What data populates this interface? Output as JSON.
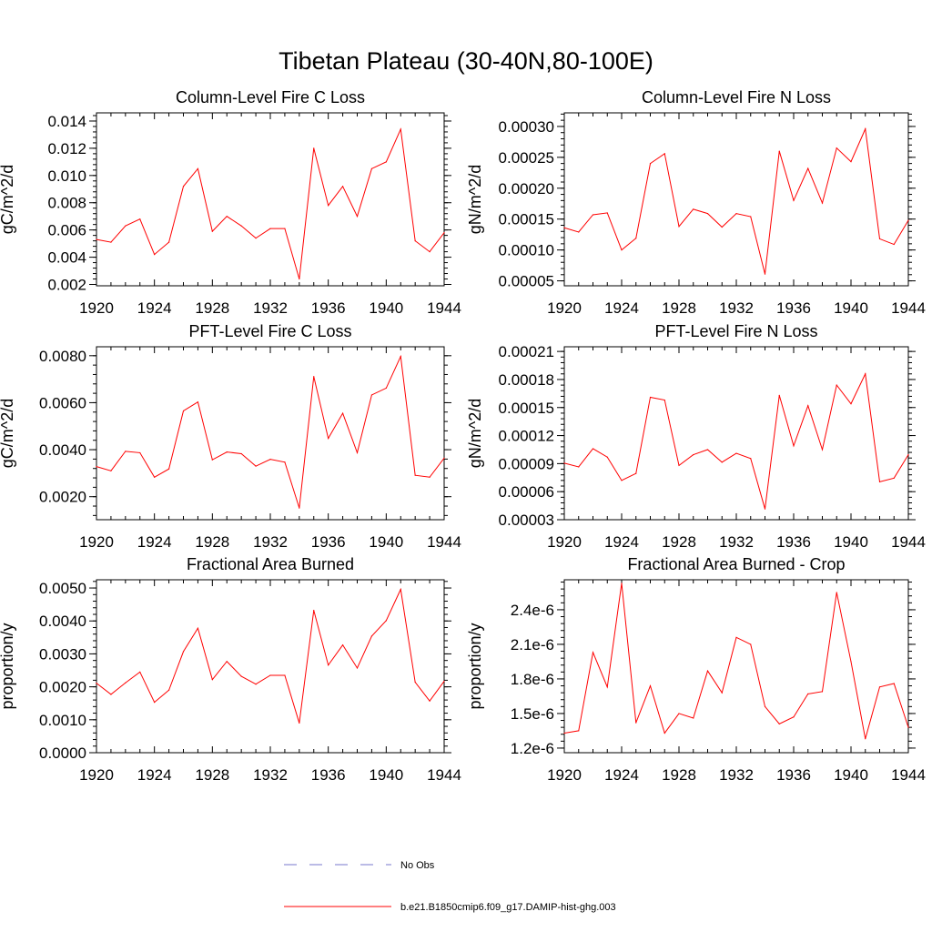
{
  "main_title": "Tibetan Plateau (30-40N,80-100E)",
  "legend": [
    {
      "label": "No Obs",
      "color": "#7777cc",
      "dash": "dashed"
    },
    {
      "label": "b.e21.B1850cmip6.f09_g17.DAMIP-hist-ghg.003",
      "color": "#ff0000",
      "dash": "solid"
    }
  ],
  "chart_data": [
    {
      "type": "line",
      "title": "Column-Level Fire C Loss",
      "ylabel": "gC/m^2/d",
      "xlim": [
        1920,
        1944
      ],
      "ylim": [
        0.0019,
        0.0146
      ],
      "xticks": [
        1920,
        1924,
        1928,
        1932,
        1936,
        1940,
        1944
      ],
      "xticklabels": [
        "1920",
        "1924",
        "1928",
        "1932",
        "1936",
        "1940",
        "1944"
      ],
      "yticks": [
        0.002,
        0.004,
        0.006,
        0.008,
        0.01,
        0.012,
        0.014
      ],
      "yticklabels": [
        "0.002",
        "0.004",
        "0.006",
        "0.008",
        "0.010",
        "0.012",
        "0.014"
      ],
      "x": [
        1920,
        1921,
        1922,
        1923,
        1924,
        1925,
        1926,
        1927,
        1928,
        1929,
        1930,
        1931,
        1932,
        1933,
        1934,
        1935,
        1936,
        1937,
        1938,
        1939,
        1940,
        1941,
        1942,
        1943,
        1944
      ],
      "series": [
        {
          "values": [
            0.0053,
            0.0051,
            0.0063,
            0.0068,
            0.0042,
            0.0051,
            0.0092,
            0.0105,
            0.0059,
            0.007,
            0.0063,
            0.0054,
            0.0061,
            0.0061,
            0.0024,
            0.012,
            0.0078,
            0.0092,
            0.007,
            0.0105,
            0.011,
            0.0134,
            0.0052,
            0.0044,
            0.0058
          ]
        }
      ]
    },
    {
      "type": "line",
      "title": "Column-Level Fire N Loss",
      "ylabel": "gN/m^2/d",
      "xlim": [
        1920,
        1944
      ],
      "ylim": [
        4.2e-05,
        0.000322
      ],
      "xticks": [
        1920,
        1924,
        1928,
        1932,
        1936,
        1940,
        1944
      ],
      "xticklabels": [
        "1920",
        "1924",
        "1928",
        "1932",
        "1936",
        "1940",
        "1944"
      ],
      "yticks": [
        5e-05,
        0.0001,
        0.00015,
        0.0002,
        0.00025,
        0.0003
      ],
      "yticklabels": [
        "0.00005",
        "0.00010",
        "0.00015",
        "0.00020",
        "0.00025",
        "0.00030"
      ],
      "x": [
        1920,
        1921,
        1922,
        1923,
        1924,
        1925,
        1926,
        1927,
        1928,
        1929,
        1930,
        1931,
        1932,
        1933,
        1934,
        1935,
        1936,
        1937,
        1938,
        1939,
        1940,
        1941,
        1942,
        1943,
        1944
      ],
      "series": [
        {
          "values": [
            0.000136,
            0.000129,
            0.000157,
            0.00016,
            0.0001,
            0.000119,
            0.00024,
            0.000256,
            0.000138,
            0.000166,
            0.000159,
            0.000137,
            0.000159,
            0.000154,
            6.1e-05,
            0.00026,
            0.00018,
            0.000232,
            0.000176,
            0.000265,
            0.000243,
            0.000296,
            0.000118,
            0.000109,
            0.000148
          ]
        }
      ]
    },
    {
      "type": "line",
      "title": "PFT-Level Fire C Loss",
      "ylabel": "gC/m^2/d",
      "xlim": [
        1920,
        1944
      ],
      "ylim": [
        0.00102,
        0.00838
      ],
      "xticks": [
        1920,
        1924,
        1928,
        1932,
        1936,
        1940,
        1944
      ],
      "xticklabels": [
        "1920",
        "1924",
        "1928",
        "1932",
        "1936",
        "1940",
        "1944"
      ],
      "yticks": [
        0.002,
        0.004,
        0.006,
        0.008
      ],
      "yticklabels": [
        "0.0020",
        "0.0040",
        "0.0060",
        "0.0080"
      ],
      "x": [
        1920,
        1921,
        1922,
        1923,
        1924,
        1925,
        1926,
        1927,
        1928,
        1929,
        1930,
        1931,
        1932,
        1933,
        1934,
        1935,
        1936,
        1937,
        1938,
        1939,
        1940,
        1941,
        1942,
        1943,
        1944
      ],
      "series": [
        {
          "values": [
            0.00328,
            0.0031,
            0.00393,
            0.00387,
            0.00283,
            0.00318,
            0.00565,
            0.00603,
            0.00357,
            0.0039,
            0.00383,
            0.0033,
            0.00359,
            0.00347,
            0.00152,
            0.00711,
            0.00448,
            0.00555,
            0.00387,
            0.00633,
            0.00662,
            0.00797,
            0.00291,
            0.00283,
            0.00364
          ]
        }
      ]
    },
    {
      "type": "line",
      "title": "PFT-Level Fire N Loss",
      "ylabel": "gN/m^2/d",
      "xlim": [
        1920,
        1944
      ],
      "ylim": [
        3e-05,
        0.000215
      ],
      "xticks": [
        1920,
        1924,
        1928,
        1932,
        1936,
        1940,
        1944
      ],
      "xticklabels": [
        "1920",
        "1924",
        "1928",
        "1932",
        "1936",
        "1940",
        "1944"
      ],
      "yticks": [
        3e-05,
        6e-05,
        9e-05,
        0.00012,
        0.00015,
        0.00018,
        0.00021
      ],
      "yticklabels": [
        "0.00003",
        "0.00006",
        "0.00009",
        "0.00012",
        "0.00015",
        "0.00018",
        "0.00021"
      ],
      "x": [
        1920,
        1921,
        1922,
        1923,
        1924,
        1925,
        1926,
        1927,
        1928,
        1929,
        1930,
        1931,
        1932,
        1933,
        1934,
        1935,
        1936,
        1937,
        1938,
        1939,
        1940,
        1941,
        1942,
        1943,
        1944
      ],
      "series": [
        {
          "values": [
            9.05e-05,
            8.65e-05,
            0.000106,
            9.7e-05,
            7.2e-05,
            7.95e-05,
            0.000161,
            0.000158,
            8.8e-05,
            9.95e-05,
            0.000105,
            9.15e-05,
            0.000101,
            9.55e-05,
            4.15e-05,
            0.000163,
            0.000109,
            0.000152,
            0.000105,
            0.000174,
            0.000154,
            0.000186,
            7.05e-05,
            7.45e-05,
            9.95e-05
          ]
        }
      ]
    },
    {
      "type": "line",
      "title": "Fractional Area Burned",
      "ylabel": "proportion/y",
      "xlim": [
        1920,
        1944
      ],
      "ylim": [
        0,
        0.00525
      ],
      "xticks": [
        1920,
        1924,
        1928,
        1932,
        1936,
        1940,
        1944
      ],
      "xticklabels": [
        "1920",
        "1924",
        "1928",
        "1932",
        "1936",
        "1940",
        "1944"
      ],
      "yticks": [
        0,
        0.001,
        0.002,
        0.003,
        0.004,
        0.005
      ],
      "yticklabels": [
        "0.0000",
        "0.0010",
        "0.0020",
        "0.0030",
        "0.0040",
        "0.0050"
      ],
      "x": [
        1920,
        1921,
        1922,
        1923,
        1924,
        1925,
        1926,
        1927,
        1928,
        1929,
        1930,
        1931,
        1932,
        1933,
        1934,
        1935,
        1936,
        1937,
        1938,
        1939,
        1940,
        1941,
        1942,
        1943,
        1944
      ],
      "series": [
        {
          "values": [
            0.00211,
            0.00177,
            0.00212,
            0.00245,
            0.00153,
            0.0019,
            0.00307,
            0.00378,
            0.00222,
            0.00277,
            0.00232,
            0.00208,
            0.00235,
            0.00235,
            0.0009,
            0.00432,
            0.00266,
            0.00327,
            0.00257,
            0.00354,
            0.00401,
            0.00496,
            0.00214,
            0.00157,
            0.00217
          ]
        }
      ]
    },
    {
      "type": "line",
      "title": "Fractional Area Burned - Crop",
      "ylabel": "proportion/y",
      "xlim": [
        1920,
        1944
      ],
      "ylim": [
        1.16e-06,
        2.66e-06
      ],
      "xticks": [
        1920,
        1924,
        1928,
        1932,
        1936,
        1940,
        1944
      ],
      "xticklabels": [
        "1920",
        "1924",
        "1928",
        "1932",
        "1936",
        "1940",
        "1944"
      ],
      "yticks": [
        1.2e-06,
        1.5e-06,
        1.8e-06,
        2.1e-06,
        2.4e-06
      ],
      "yticklabels": [
        "1.2e-6",
        "1.5e-6",
        "1.8e-6",
        "2.1e-6",
        "2.4e-6"
      ],
      "x": [
        1920,
        1921,
        1922,
        1923,
        1924,
        1925,
        1926,
        1927,
        1928,
        1929,
        1930,
        1931,
        1932,
        1933,
        1934,
        1935,
        1936,
        1937,
        1938,
        1939,
        1940,
        1941,
        1942,
        1943,
        1944
      ],
      "series": [
        {
          "values": [
            1.33e-06,
            1.35e-06,
            2.03e-06,
            1.73e-06,
            2.63e-06,
            1.42e-06,
            1.74e-06,
            1.33e-06,
            1.5e-06,
            1.46e-06,
            1.87e-06,
            1.68e-06,
            2.16e-06,
            2.1e-06,
            1.56e-06,
            1.41e-06,
            1.47e-06,
            1.67e-06,
            1.69e-06,
            2.55e-06,
            1.95e-06,
            1.28e-06,
            1.73e-06,
            1.76e-06,
            1.38e-06
          ]
        }
      ]
    }
  ]
}
